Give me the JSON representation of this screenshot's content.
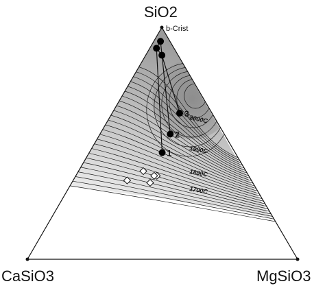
{
  "chart_data": {
    "type": "ternary",
    "vertices": {
      "top": "SiO2",
      "left": "CaSiO3",
      "right": "MgSiO3"
    },
    "vertex_annotation": "b-Crist",
    "isotherms": [
      {
        "label": "2000C",
        "temperature": 2000
      },
      {
        "label": "1900C",
        "temperature": 1900
      },
      {
        "label": "1800C",
        "temperature": 1800
      },
      {
        "label": "1700C",
        "temperature": 1700
      }
    ],
    "points": [
      {
        "label": "1",
        "SiO2": 0.46,
        "MgSiO3": 0.27
      },
      {
        "label": "2",
        "SiO2": 0.54,
        "MgSiO3": 0.26
      },
      {
        "label": "3",
        "SiO2": 0.63,
        "MgSiO3": 0.25
      },
      {
        "label": "",
        "SiO2": 0.94,
        "MgSiO3": 0.025
      },
      {
        "label": "",
        "SiO2": 0.91,
        "MgSiO3": 0.025
      },
      {
        "label": "",
        "SiO2": 0.88,
        "MgSiO3": 0.06
      }
    ],
    "paths": [
      {
        "from": "1",
        "to": 4
      },
      {
        "from": "2",
        "to": 3
      },
      {
        "from": "3",
        "to": 5
      }
    ],
    "open_points": [
      {
        "SiO2": 0.38,
        "MgSiO3": 0.24
      },
      {
        "SiO2": 0.36,
        "MgSiO3": 0.3
      },
      {
        "SiO2": 0.34,
        "MgSiO3": 0.2
      },
      {
        "SiO2": 0.36,
        "MgSiO3": 0.29
      },
      {
        "SiO2": 0.33,
        "MgSiO3": 0.29
      }
    ],
    "colors": {
      "liquidus_fill": "#d9d9d9",
      "hot_fill": "#8c8c8c",
      "line": "#111111"
    }
  }
}
